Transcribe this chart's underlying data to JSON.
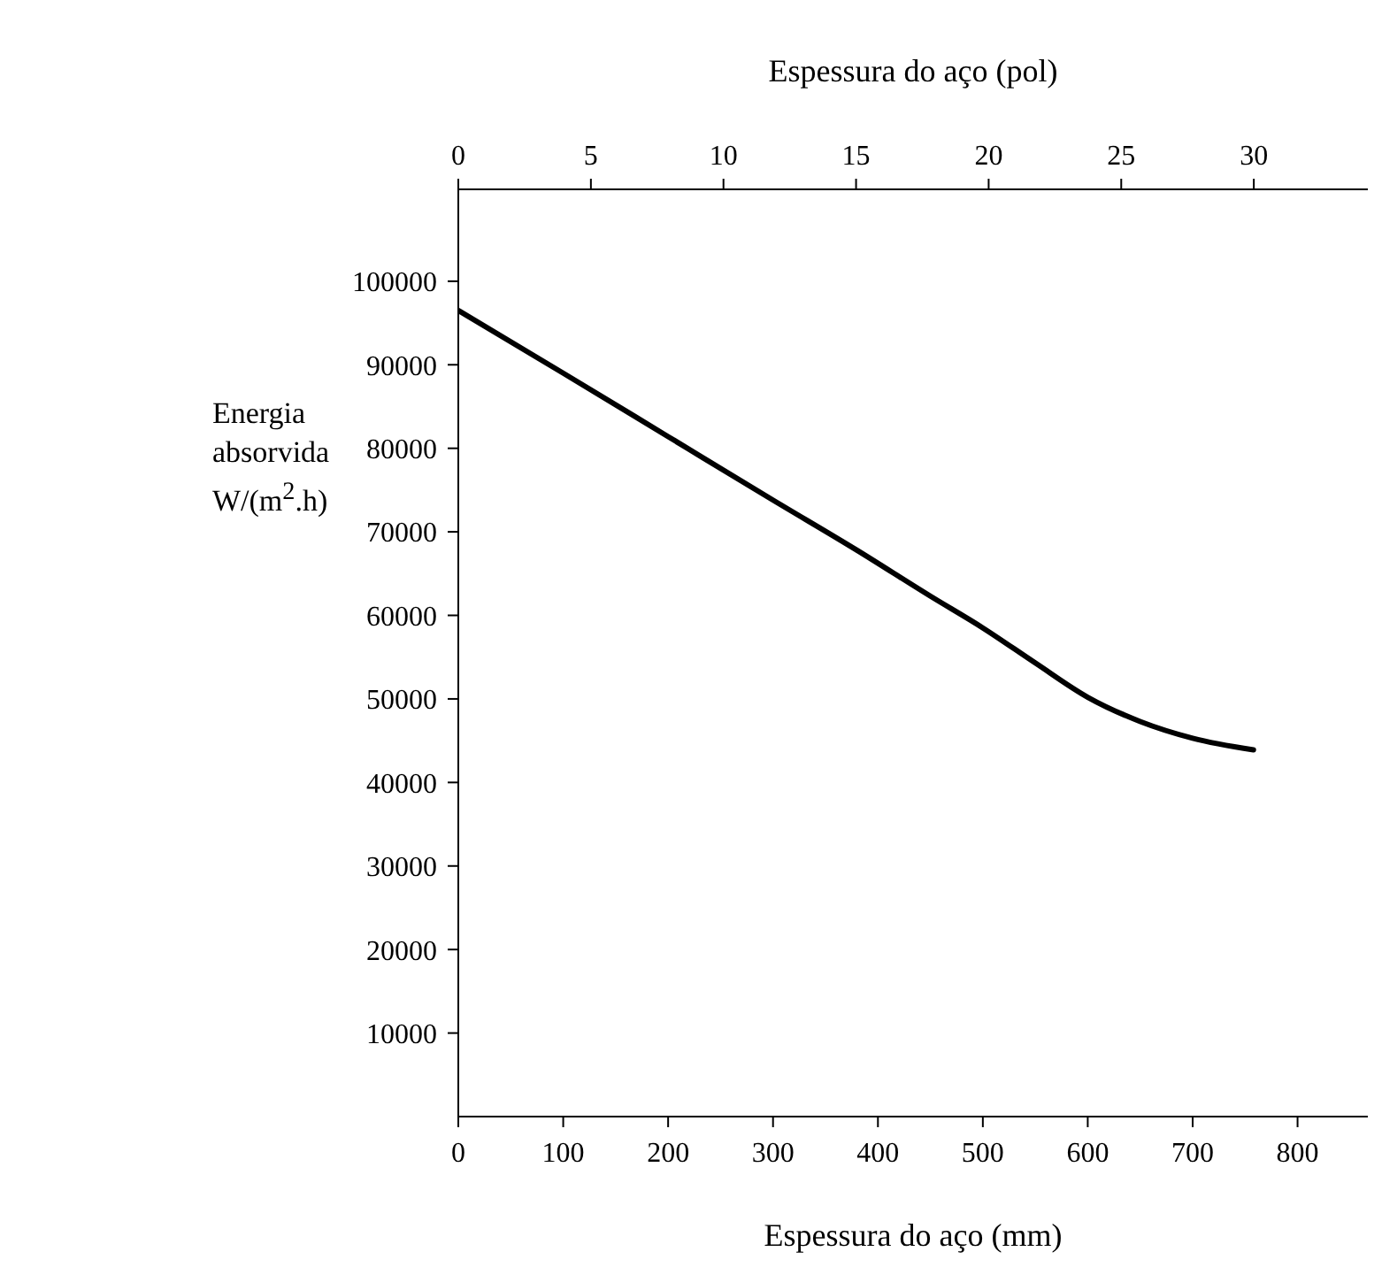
{
  "chart_data": {
    "type": "line",
    "xlabel": "Espessura do aço (mm)",
    "x2label": "Espessura do aço (pol)",
    "ylabel": "Energia absorvida W/(m$^{2}$.h)",
    "x": [
      0,
      100,
      200,
      300,
      380,
      450,
      500,
      550,
      600,
      650,
      700,
      758
    ],
    "series": [
      {
        "color": "#000000",
        "values": [
          96500,
          89000,
          81400,
          73800,
          67800,
          62300,
          58500,
          54300,
          50200,
          47300,
          45300,
          43900
        ]
      }
    ],
    "xlim": [
      0,
      867
    ],
    "xticks": [
      0,
      100,
      200,
      300,
      400,
      500,
      600,
      700,
      800
    ],
    "x2lim": [
      0,
      34.3
    ],
    "x2ticks": [
      0,
      5,
      10,
      15,
      20,
      25,
      30
    ],
    "ylim": [
      0,
      111000
    ],
    "yticks": [
      10000,
      20000,
      30000,
      40000,
      50000,
      60000,
      70000,
      80000,
      90000,
      100000
    ],
    "grid": false,
    "legend": false,
    "marker": "none",
    "line_style": "solid"
  }
}
